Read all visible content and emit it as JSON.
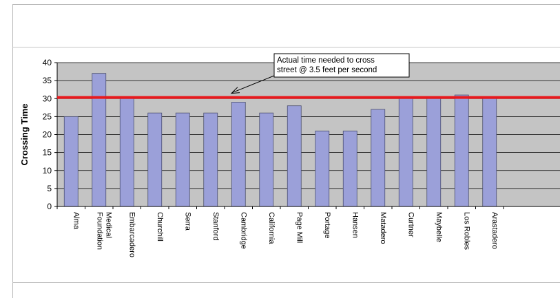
{
  "chart_data": {
    "type": "bar",
    "title": "",
    "xlabel": "",
    "ylabel": "Crossing Time",
    "ylim": [
      0,
      40
    ],
    "yticks": [
      0,
      5,
      10,
      15,
      20,
      25,
      30,
      35,
      40
    ],
    "grid": true,
    "categories": [
      [
        "Alma"
      ],
      [
        "Medical",
        "Foundation"
      ],
      [
        "Embarcadero"
      ],
      [
        "Churchill"
      ],
      [
        "Serra"
      ],
      [
        "Stanford"
      ],
      [
        "Cambridge"
      ],
      [
        "California"
      ],
      [
        "Page Mill"
      ],
      [
        "Portage"
      ],
      [
        "Hansen"
      ],
      [
        "Matadero"
      ],
      [
        "Curtner"
      ],
      [
        "Maybelle"
      ],
      [
        "Los Robles"
      ],
      [
        "Arastadero"
      ]
    ],
    "values": [
      25,
      37,
      30,
      26,
      26,
      26,
      29,
      26,
      28,
      21,
      21,
      27,
      30,
      30,
      31,
      30
    ],
    "reference_line": {
      "value": 30.3,
      "color": "#e8191d",
      "annotation": [
        "Actual time needed to cross",
        "street @ 3.5 feet per second"
      ]
    },
    "colors": {
      "bar_fill": "#9ba0d9",
      "bar_stroke": "#4a4e6e",
      "plot_background": "#c4c4c4",
      "gridline": "#000000"
    }
  }
}
